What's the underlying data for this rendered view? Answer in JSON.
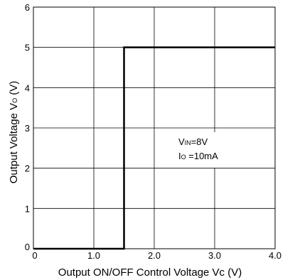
{
  "chart_data": {
    "type": "line",
    "title": "",
    "xlabel": "Output ON/OFF Control Voltage Vc (V)",
    "ylabel_main": "Output Voltage V",
    "ylabel_sub": "O",
    "ylabel_unit": " (V)",
    "xlim": [
      0,
      4.0
    ],
    "ylim": [
      0,
      6
    ],
    "x_ticks": [
      0,
      1.0,
      2.0,
      3.0,
      4.0
    ],
    "x_tick_labels": [
      "0",
      "1.0",
      "2.0",
      "3.0",
      "4.0"
    ],
    "y_ticks": [
      0,
      1,
      2,
      3,
      4,
      5,
      6
    ],
    "y_tick_labels": [
      "0",
      "1",
      "2",
      "3",
      "4",
      "5",
      "6"
    ],
    "grid": true,
    "series": [
      {
        "x": [
          0,
          1.5,
          1.5,
          4.0
        ],
        "y": [
          0,
          0,
          5,
          5
        ]
      }
    ],
    "annotation": {
      "vin_prefix": "V",
      "vin_sub": "IN",
      "vin_value": "=8V",
      "io_prefix": "I",
      "io_sub": "O",
      "io_value": " =10mA"
    }
  }
}
